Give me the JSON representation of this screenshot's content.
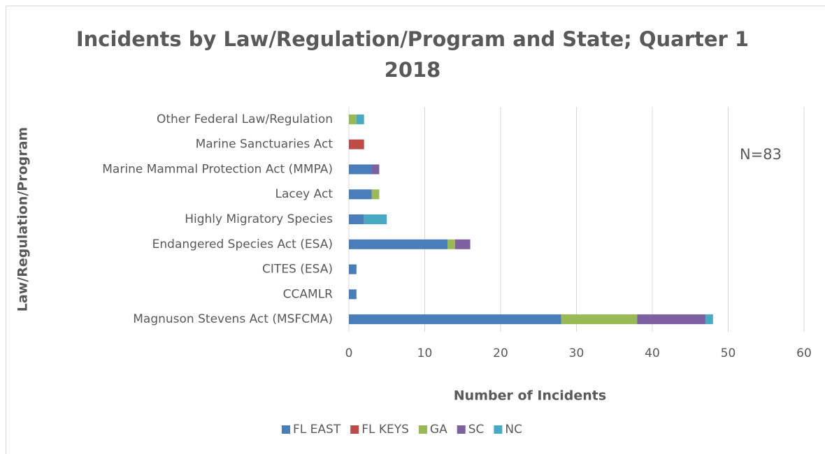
{
  "chart_data": {
    "type": "stacked-bar-horizontal",
    "title": "Incidents by Law/Regulation/Program and State; Quarter 1 2018",
    "x_label": "Number of Incidents",
    "y_label": "Law/Regulation/Program",
    "annotation": "N=83",
    "categories": [
      "Magnuson Stevens Act (MSFCMA)",
      "CCAMLR",
      "CITES (ESA)",
      "Endangered Species Act (ESA)",
      "Highly Migratory Species",
      "Lacey Act",
      "Marine Mammal Protection Act (MMPA)",
      "Marine Sanctuaries Act",
      "Other Federal Law/Regulation"
    ],
    "series": [
      {
        "name": "FL EAST",
        "color": "#4a7ebb",
        "values": [
          28,
          1,
          1,
          13,
          2,
          3,
          3,
          0,
          0
        ]
      },
      {
        "name": "FL KEYS",
        "color": "#be4b48",
        "values": [
          0,
          0,
          0,
          0,
          0,
          0,
          0,
          2,
          0
        ]
      },
      {
        "name": "GA",
        "color": "#98b954",
        "values": [
          10,
          0,
          0,
          1,
          0,
          1,
          0,
          0,
          1
        ]
      },
      {
        "name": "SC",
        "color": "#7d60a0",
        "values": [
          9,
          0,
          0,
          2,
          0,
          0,
          1,
          0,
          0
        ]
      },
      {
        "name": "NC",
        "color": "#46aac5",
        "values": [
          1,
          0,
          0,
          0,
          3,
          0,
          0,
          0,
          1
        ]
      }
    ],
    "xlim": [
      0,
      60
    ],
    "xticks": [
      0,
      10,
      20,
      30,
      40,
      50,
      60
    ],
    "grid": true,
    "legend": "bottom"
  }
}
